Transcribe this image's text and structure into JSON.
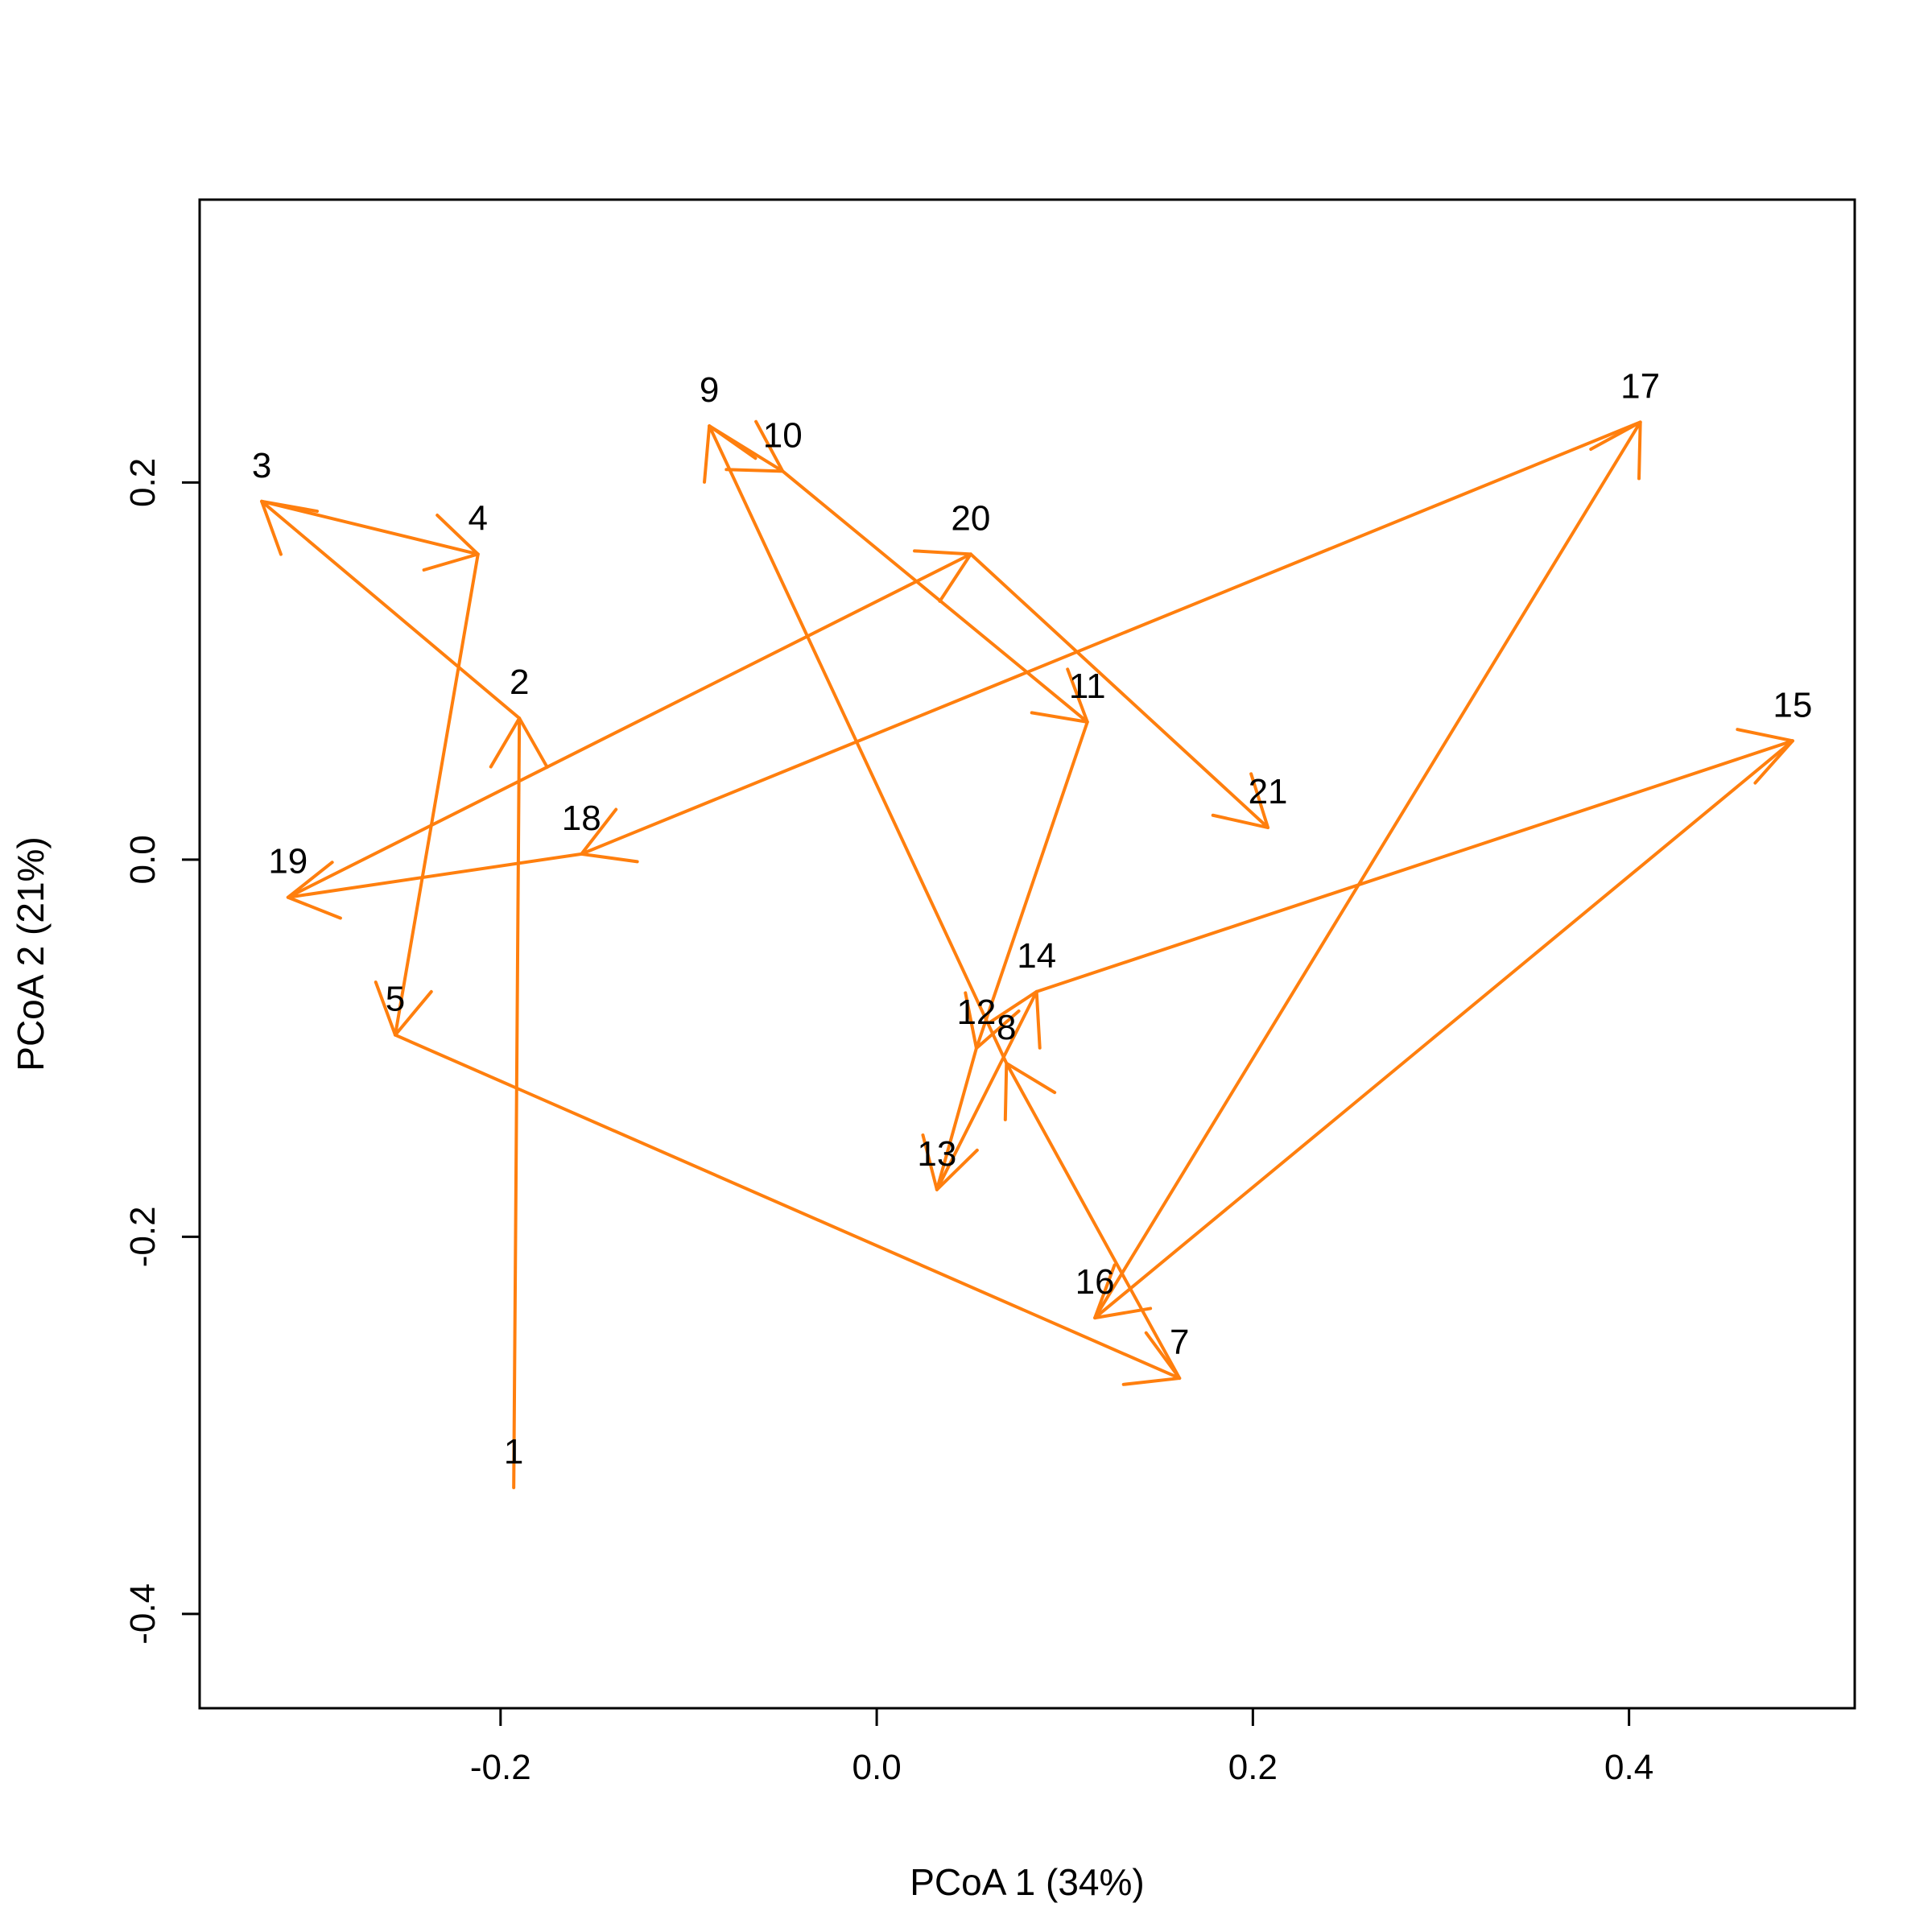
{
  "chart_data": {
    "type": "scatter",
    "xlabel": "PCoA 1 (34%)",
    "ylabel": "PCoA 2 (21%)",
    "xlim": [
      -0.36,
      0.52
    ],
    "ylim": [
      -0.45,
      0.35
    ],
    "xticks": [
      -0.2,
      0.0,
      0.2,
      0.4
    ],
    "yticks": [
      -0.4,
      -0.2,
      0.0,
      0.2
    ],
    "xtick_labels": [
      "-0.2",
      "0.0",
      "0.2",
      "0.4"
    ],
    "ytick_labels": [
      "-0.4",
      "-0.2",
      "0.0",
      "0.2"
    ],
    "grid": false,
    "arrow_color": "#ff7f0e",
    "points": [
      {
        "label": "1",
        "x": -0.193,
        "y": -0.333
      },
      {
        "label": "2",
        "x": -0.19,
        "y": 0.075
      },
      {
        "label": "3",
        "x": -0.327,
        "y": 0.19
      },
      {
        "label": "4",
        "x": -0.212,
        "y": 0.162
      },
      {
        "label": "5",
        "x": -0.256,
        "y": -0.093
      },
      {
        "label": "7",
        "x": 0.161,
        "y": -0.275
      },
      {
        "label": "8",
        "x": 0.069,
        "y": -0.108
      },
      {
        "label": "9",
        "x": -0.089,
        "y": 0.23
      },
      {
        "label": "10",
        "x": -0.05,
        "y": 0.206
      },
      {
        "label": "11",
        "x": 0.112,
        "y": 0.073
      },
      {
        "label": "12",
        "x": 0.053,
        "y": -0.1
      },
      {
        "label": "13",
        "x": 0.032,
        "y": -0.175
      },
      {
        "label": "14",
        "x": 0.085,
        "y": -0.07
      },
      {
        "label": "15",
        "x": 0.487,
        "y": 0.063
      },
      {
        "label": "16",
        "x": 0.116,
        "y": -0.243
      },
      {
        "label": "17",
        "x": 0.406,
        "y": 0.232
      },
      {
        "label": "18",
        "x": -0.157,
        "y": 0.003
      },
      {
        "label": "19",
        "x": -0.313,
        "y": -0.02
      },
      {
        "label": "20",
        "x": 0.05,
        "y": 0.162
      },
      {
        "label": "21",
        "x": 0.208,
        "y": 0.017
      }
    ],
    "arrows": [
      {
        "from": "1",
        "to": "2"
      },
      {
        "from": "2",
        "to": "3"
      },
      {
        "from": "3",
        "to": "4"
      },
      {
        "from": "4",
        "to": "5"
      },
      {
        "from": "5",
        "to": "7"
      },
      {
        "from": "7",
        "to": "8"
      },
      {
        "from": "8",
        "to": "9"
      },
      {
        "from": "9",
        "to": "10"
      },
      {
        "from": "10",
        "to": "11"
      },
      {
        "from": "11",
        "to": "12"
      },
      {
        "from": "12",
        "to": "13"
      },
      {
        "from": "13",
        "to": "14"
      },
      {
        "from": "14",
        "to": "15"
      },
      {
        "from": "15",
        "to": "16"
      },
      {
        "from": "16",
        "to": "17"
      },
      {
        "from": "17",
        "to": "18"
      },
      {
        "from": "18",
        "to": "19"
      },
      {
        "from": "19",
        "to": "20"
      },
      {
        "from": "20",
        "to": "21"
      }
    ]
  }
}
